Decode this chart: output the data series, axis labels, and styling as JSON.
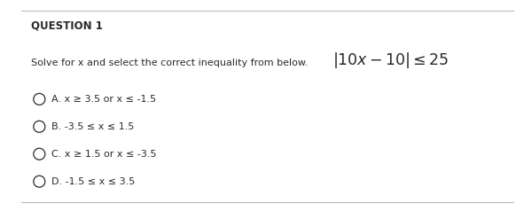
{
  "title": "QUESTION 1",
  "question_text": "Solve for x and select the correct inequality from below.",
  "options": [
    "A. x ≥ 3.5 or x ≤ -1.5",
    "B. -3.5 ≤ x ≤ 1.5",
    "C. x ≥ 1.5 or x ≤ -3.5",
    "D. -1.5 ≤ x ≤ 3.5"
  ],
  "bg_color": "#ffffff",
  "text_color": "#2a2a2a",
  "title_fontsize": 8.5,
  "question_fontsize": 8.0,
  "math_fontsize": 12.5,
  "option_fontsize": 8.0,
  "top_line_color": "#bbbbbb",
  "bottom_line_color": "#bbbbbb"
}
